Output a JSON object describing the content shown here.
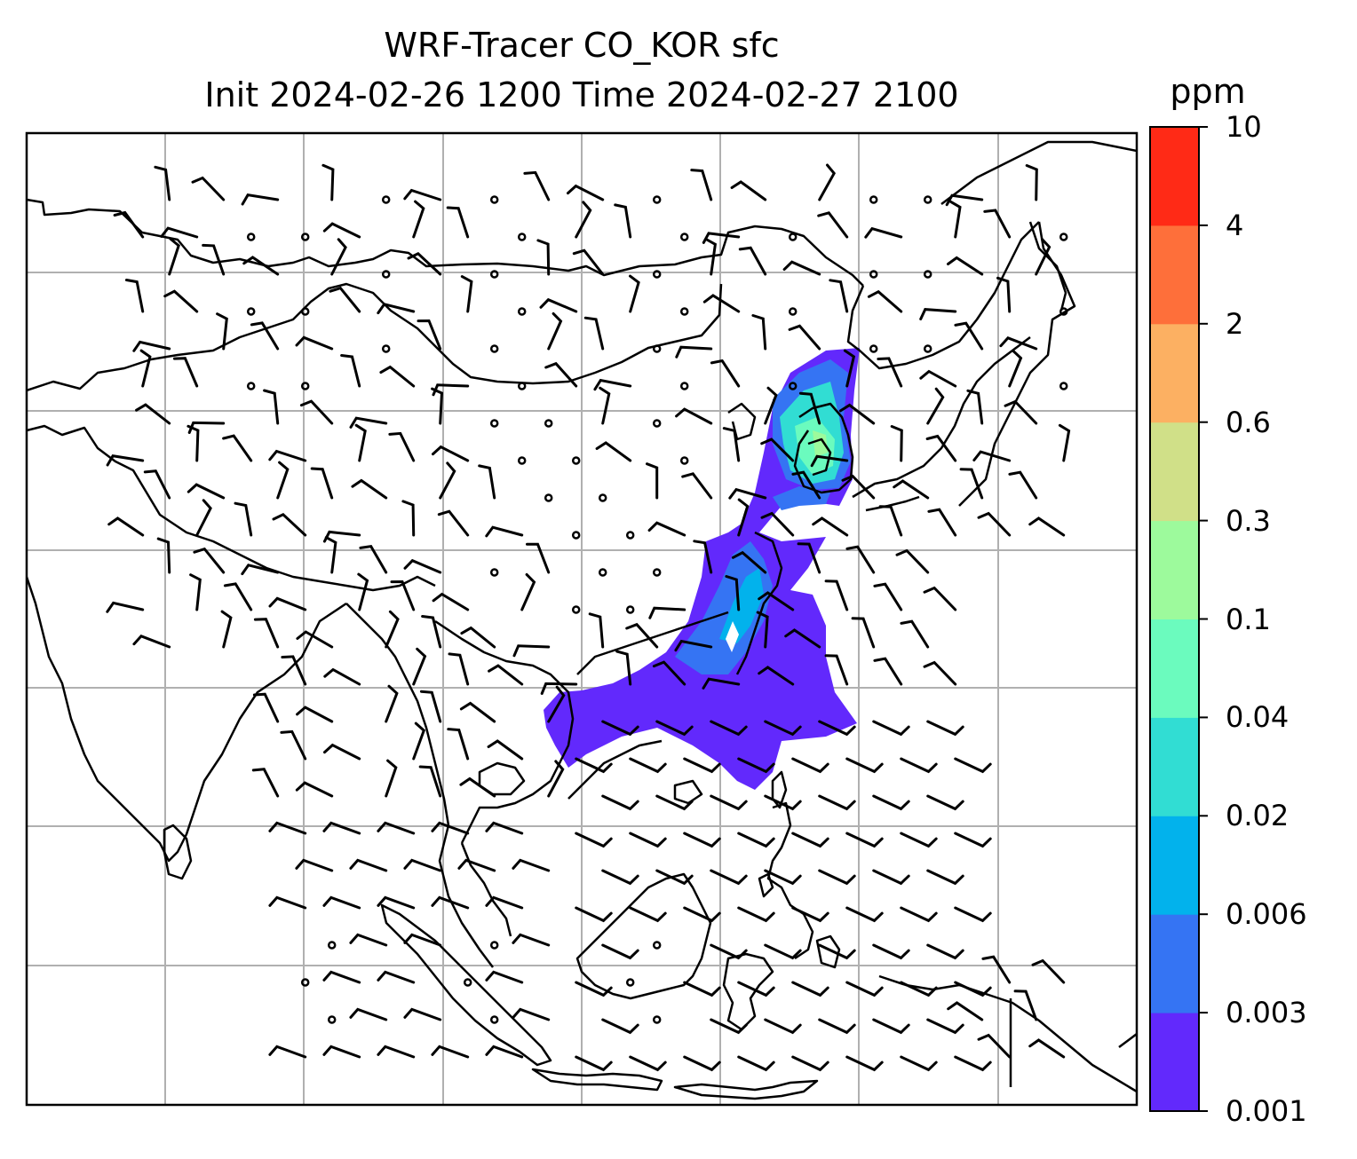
{
  "title": {
    "line1": "WRF-Tracer CO_KOR sfc",
    "line2": "Init 2024-02-26 1200 Time 2024-02-27 2100"
  },
  "colorbar": {
    "unit": "ppm",
    "ticks": [
      "0.001",
      "0.003",
      "0.006",
      "0.02",
      "0.04",
      "0.1",
      "0.3",
      "0.6",
      "2",
      "4",
      "10"
    ],
    "colors": [
      "#6229fc",
      "#3574f3",
      "#02b2ec",
      "#31ddd3",
      "#6bfbbe",
      "#9dfa9c",
      "#d0e088",
      "#fcb062",
      "#fe6f3a",
      "#ff2a16"
    ]
  },
  "map": {
    "coastline_color": "#000000",
    "gridline_color": "#b0b0b0",
    "wind_barb_color": "#000000",
    "plume_colors_used": [
      "#6229fc",
      "#3574f3",
      "#02b2ec",
      "#31ddd3",
      "#6bfbbe",
      "#9dfa9c"
    ]
  }
}
